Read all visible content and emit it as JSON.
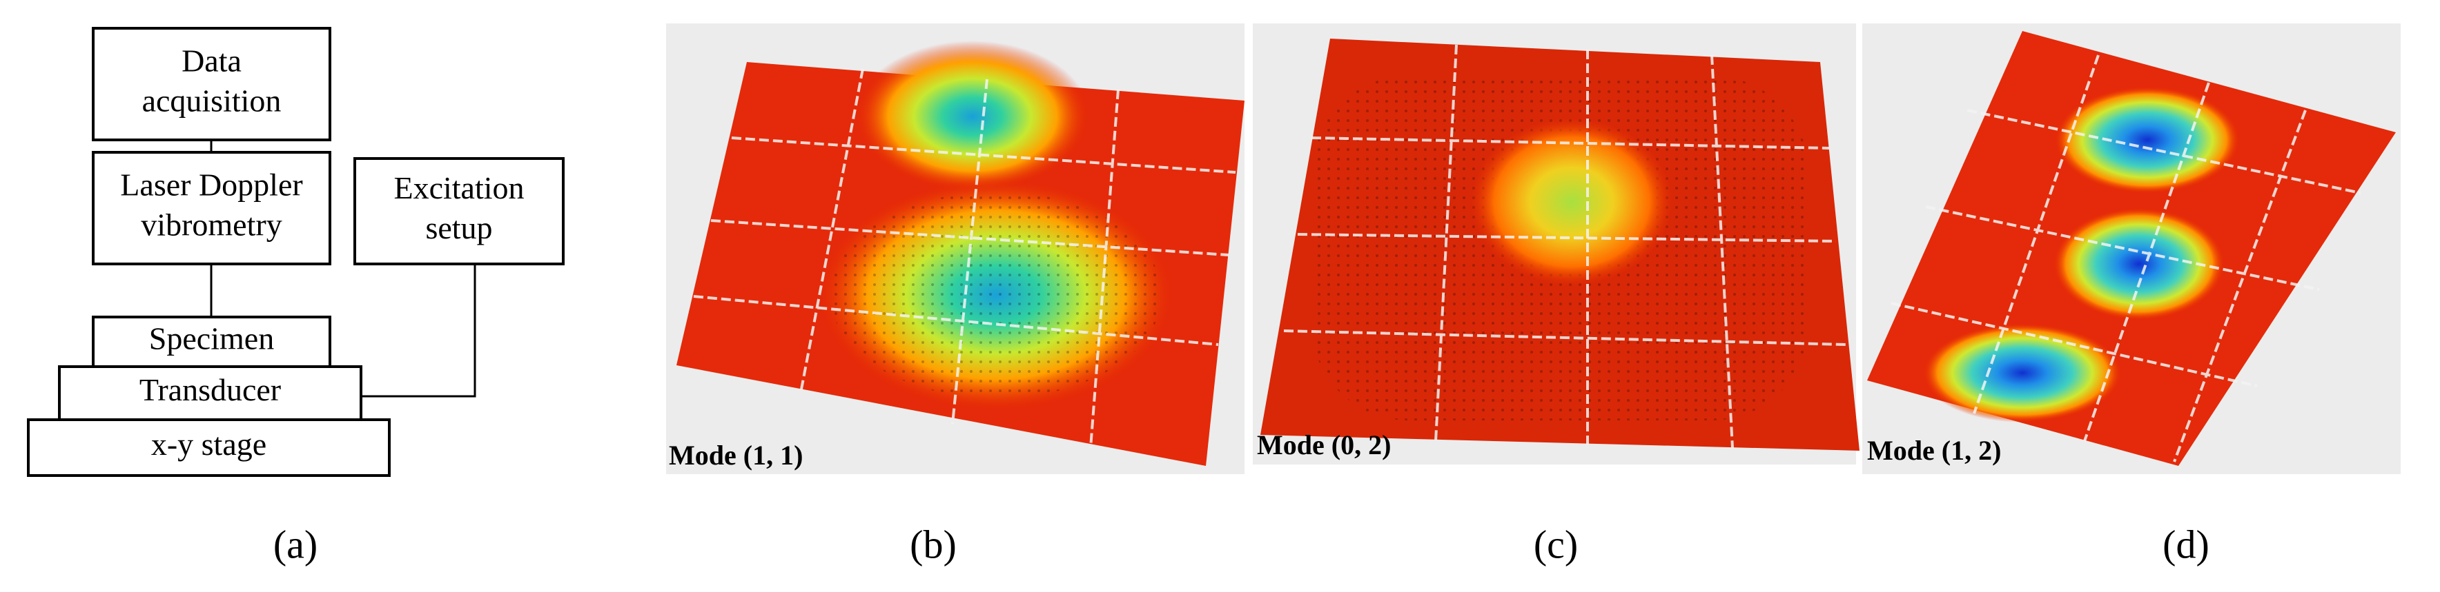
{
  "diagram": {
    "boxes": [
      {
        "lines": [
          "Data",
          "acquisition"
        ]
      },
      {
        "lines": [
          "Laser Doppler",
          "vibrometry"
        ]
      },
      {
        "lines": [
          "Excitation",
          "setup"
        ]
      },
      {
        "lines": [
          "Specimen"
        ]
      },
      {
        "lines": [
          "Transducer"
        ]
      },
      {
        "lines": [
          "x-y stage"
        ]
      }
    ],
    "panel_label": "(a)"
  },
  "panels": [
    {
      "mode_label": "Mode (1, 1)",
      "panel_label": "(b)"
    },
    {
      "mode_label": "Mode (0, 2)",
      "panel_label": "(c)"
    },
    {
      "mode_label": "Mode (1, 2)",
      "panel_label": "(d)"
    }
  ]
}
